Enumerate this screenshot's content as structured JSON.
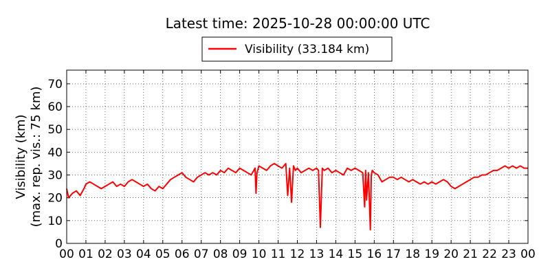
{
  "chart_data": {
    "type": "line",
    "title": "Latest time: 2025-10-28 00:00:00 UTC",
    "ylabel": "Visibility (km)",
    "ylabel2": "(max. rep. vis.: 75 km)",
    "xlabel": "",
    "xlim": [
      0,
      24
    ],
    "ylim": [
      0,
      76
    ],
    "grid": true,
    "legend": {
      "placement": "top-center",
      "entries": [
        "Visibility (33.184 km)"
      ]
    },
    "x_ticks": [
      0,
      1,
      2,
      3,
      4,
      5,
      6,
      7,
      8,
      9,
      10,
      11,
      12,
      13,
      14,
      15,
      16,
      17,
      18,
      19,
      20,
      21,
      22,
      23,
      24
    ],
    "x_tick_labels": [
      "00",
      "01",
      "02",
      "03",
      "04",
      "05",
      "06",
      "07",
      "08",
      "09",
      "10",
      "11",
      "12",
      "13",
      "14",
      "15",
      "16",
      "17",
      "18",
      "19",
      "20",
      "21",
      "22",
      "23",
      "00"
    ],
    "y_ticks": [
      0,
      10,
      20,
      30,
      40,
      50,
      60,
      70
    ],
    "y_tick_labels": [
      "0",
      "10",
      "20",
      "30",
      "40",
      "50",
      "60",
      "70"
    ],
    "series": [
      {
        "name": "Visibility (33.184 km)",
        "color": "#ff0000",
        "x": [
          0,
          0.1,
          0.2,
          0.3,
          0.5,
          0.7,
          0.9,
          1.0,
          1.2,
          1.4,
          1.6,
          1.8,
          2.0,
          2.2,
          2.4,
          2.6,
          2.8,
          3.0,
          3.2,
          3.4,
          3.6,
          3.8,
          4.0,
          4.2,
          4.4,
          4.6,
          4.8,
          5.0,
          5.2,
          5.4,
          5.6,
          5.8,
          6.0,
          6.2,
          6.4,
          6.6,
          6.8,
          7.0,
          7.2,
          7.4,
          7.6,
          7.8,
          8.0,
          8.2,
          8.4,
          8.6,
          8.8,
          9.0,
          9.2,
          9.4,
          9.6,
          9.8,
          9.85,
          9.9,
          10.0,
          10.2,
          10.4,
          10.6,
          10.8,
          11.0,
          11.2,
          11.4,
          11.5,
          11.6,
          11.7,
          11.8,
          11.9,
          12.0,
          12.2,
          12.4,
          12.6,
          12.8,
          13.0,
          13.1,
          13.2,
          13.25,
          13.3,
          13.4,
          13.6,
          13.8,
          14.0,
          14.2,
          14.4,
          14.6,
          14.8,
          15.0,
          15.2,
          15.4,
          15.5,
          15.55,
          15.6,
          15.7,
          15.8,
          15.85,
          15.9,
          16.0,
          16.2,
          16.4,
          16.6,
          16.8,
          17.0,
          17.2,
          17.4,
          17.6,
          17.8,
          18.0,
          18.2,
          18.4,
          18.6,
          18.8,
          19.0,
          19.2,
          19.4,
          19.6,
          19.8,
          20.0,
          20.2,
          20.4,
          20.6,
          20.8,
          21.0,
          21.2,
          21.4,
          21.6,
          21.8,
          22.0,
          22.2,
          22.4,
          22.6,
          22.8,
          23.0,
          23.2,
          23.4,
          23.6,
          23.8,
          24.0
        ],
        "values": [
          24,
          20,
          21,
          22,
          23,
          21,
          24,
          26,
          27,
          26,
          25,
          24,
          25,
          26,
          27,
          25,
          26,
          25,
          27,
          28,
          27,
          26,
          25,
          26,
          24,
          23,
          25,
          24,
          26,
          28,
          29,
          30,
          31,
          29,
          28,
          27,
          29,
          30,
          31,
          30,
          31,
          30,
          32,
          31,
          33,
          32,
          31,
          33,
          32,
          31,
          30,
          33,
          22,
          31,
          34,
          33,
          32,
          34,
          35,
          34,
          33,
          35,
          21,
          33,
          18,
          34,
          32,
          33,
          31,
          32,
          33,
          32,
          33,
          32,
          7,
          20,
          33,
          32,
          33,
          31,
          32,
          31,
          30,
          33,
          32,
          33,
          32,
          31,
          16,
          32,
          19,
          31,
          6,
          30,
          32,
          31,
          30,
          27,
          28,
          29,
          29,
          28,
          29,
          28,
          27,
          28,
          27,
          26,
          27,
          26,
          27,
          26,
          27,
          28,
          27,
          25,
          24,
          25,
          26,
          27,
          28,
          29,
          29,
          30,
          30,
          31,
          32,
          32,
          33,
          34,
          33,
          34,
          33,
          34,
          33,
          33
        ]
      }
    ]
  }
}
